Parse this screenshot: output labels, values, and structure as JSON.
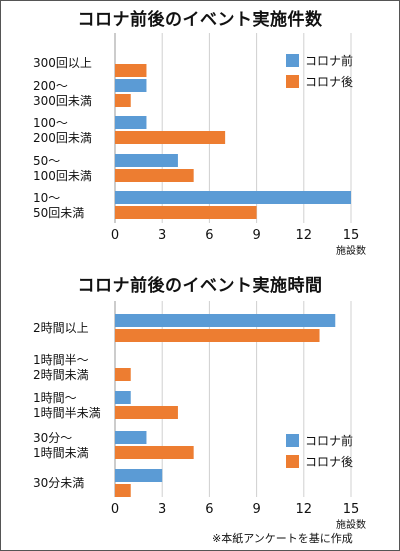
{
  "chart_data": [
    {
      "type": "bar",
      "orientation": "horizontal",
      "title": "コロナ前後のイベント実施件数",
      "categories": [
        [
          "300回以上"
        ],
        [
          "200〜",
          "300回未満"
        ],
        [
          "100〜",
          "200回未満"
        ],
        [
          "50〜",
          "100回未満"
        ],
        [
          "10〜",
          "50回未満"
        ]
      ],
      "series": [
        {
          "name": "コロナ前",
          "color": "#5b9bd5",
          "values": [
            0,
            2,
            2,
            4,
            15
          ]
        },
        {
          "name": "コロナ後",
          "color": "#ed7d31",
          "values": [
            2,
            1,
            7,
            5,
            9
          ]
        }
      ],
      "xlim": [
        0,
        15
      ],
      "xticks": [
        0,
        3,
        6,
        9,
        12,
        15
      ],
      "xlabel": "施設数",
      "grid": true,
      "legend_position": "top-right"
    },
    {
      "type": "bar",
      "orientation": "horizontal",
      "title": "コロナ前後のイベント実施時間",
      "categories": [
        [
          "2時間以上"
        ],
        [
          "1時間半〜",
          "2時間未満"
        ],
        [
          "1時間〜",
          "1時間半未満"
        ],
        [
          "30分〜",
          "1時間未満"
        ],
        [
          "30分未満"
        ]
      ],
      "series": [
        {
          "name": "コロナ前",
          "color": "#5b9bd5",
          "values": [
            14,
            0,
            1,
            2,
            3
          ]
        },
        {
          "name": "コロナ後",
          "color": "#ed7d31",
          "values": [
            13,
            1,
            4,
            5,
            1
          ]
        }
      ],
      "xlim": [
        0,
        15
      ],
      "xticks": [
        0,
        3,
        6,
        9,
        12,
        15
      ],
      "xlabel": "施設数",
      "grid": true,
      "legend_position": "bottom-right"
    }
  ],
  "footnote": "※本紙アンケートを基に作成"
}
